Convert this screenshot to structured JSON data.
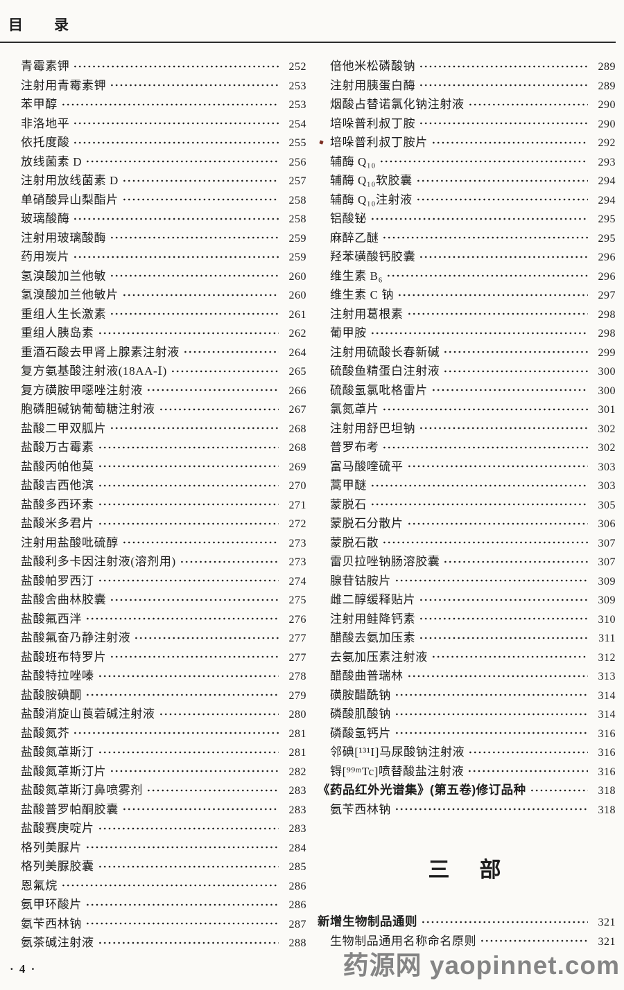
{
  "header": {
    "title": "目　　录"
  },
  "left_column": {
    "entries": [
      {
        "title": "青霉素钾",
        "page": "252"
      },
      {
        "title": "注射用青霉素钾",
        "page": "253"
      },
      {
        "title": "苯甲醇",
        "page": "253"
      },
      {
        "title": "非洛地平",
        "page": "254"
      },
      {
        "title": "依托度酸",
        "page": "255"
      },
      {
        "title": "放线菌素 D",
        "page": "256"
      },
      {
        "title": "注射用放线菌素 D",
        "page": "257"
      },
      {
        "title": "单硝酸异山梨酯片",
        "page": "258"
      },
      {
        "title": "玻璃酸酶",
        "page": "258"
      },
      {
        "title": "注射用玻璃酸酶",
        "page": "259"
      },
      {
        "title": "药用炭片",
        "page": "259"
      },
      {
        "title": "氢溴酸加兰他敏",
        "page": "260"
      },
      {
        "title": "氢溴酸加兰他敏片",
        "page": "260"
      },
      {
        "title": "重组人生长激素",
        "page": "261"
      },
      {
        "title": "重组人胰岛素",
        "page": "262"
      },
      {
        "title": "重酒石酸去甲肾上腺素注射液",
        "page": "264"
      },
      {
        "title": "复方氨基酸注射液(18AA-Ⅰ)",
        "page": "265"
      },
      {
        "title": "复方磺胺甲噁唑注射液",
        "page": "266"
      },
      {
        "title": "胞磷胆碱钠葡萄糖注射液",
        "page": "267"
      },
      {
        "title": "盐酸二甲双胍片",
        "page": "268"
      },
      {
        "title": "盐酸万古霉素",
        "page": "268"
      },
      {
        "title": "盐酸丙帕他莫",
        "page": "269"
      },
      {
        "title": "盐酸吉西他滨",
        "page": "270"
      },
      {
        "title": "盐酸多西环素",
        "page": "271"
      },
      {
        "title": "盐酸米多君片",
        "page": "272"
      },
      {
        "title": "注射用盐酸吡硫醇",
        "page": "273"
      },
      {
        "title": "盐酸利多卡因注射液(溶剂用)",
        "page": "273"
      },
      {
        "title": "盐酸帕罗西汀",
        "page": "274"
      },
      {
        "title": "盐酸舍曲林胶囊",
        "page": "275"
      },
      {
        "title": "盐酸氟西泮",
        "page": "276"
      },
      {
        "title": "盐酸氟奋乃静注射液",
        "page": "277"
      },
      {
        "title": "盐酸班布特罗片",
        "page": "277"
      },
      {
        "title": "盐酸特拉唑嗪",
        "page": "278"
      },
      {
        "title": "盐酸胺碘酮",
        "page": "279"
      },
      {
        "title": "盐酸消旋山莨菪碱注射液",
        "page": "280"
      },
      {
        "title": "盐酸氮芥",
        "page": "281"
      },
      {
        "title": "盐酸氮䓬斯汀",
        "page": "281"
      },
      {
        "title": "盐酸氮䓬斯汀片",
        "page": "282"
      },
      {
        "title": "盐酸氮䓬斯汀鼻喷雾剂",
        "page": "283"
      },
      {
        "title": "盐酸普罗帕酮胶囊",
        "page": "283"
      },
      {
        "title": "盐酸赛庚啶片",
        "page": "283"
      },
      {
        "title": "格列美脲片",
        "page": "284"
      },
      {
        "title": "格列美脲胶囊",
        "page": "285"
      },
      {
        "title": "恩氟烷",
        "page": "286"
      },
      {
        "title": "氨甲环酸片",
        "page": "286"
      },
      {
        "title": "氨苄西林钠",
        "page": "287"
      },
      {
        "title": "氨茶碱注射液",
        "page": "288"
      }
    ]
  },
  "right_column": {
    "entries": [
      {
        "title": "倍他米松磷酸钠",
        "page": "289"
      },
      {
        "title": "注射用胰蛋白酶",
        "page": "289"
      },
      {
        "title": "烟酸占替诺氯化钠注射液",
        "page": "290"
      },
      {
        "title": "培哚普利叔丁胺",
        "page": "290"
      },
      {
        "title": "培哚普利叔丁胺片",
        "page": "292",
        "marker": true
      },
      {
        "title": "辅酶 Q₁₀",
        "page": "293"
      },
      {
        "title": "辅酶 Q₁₀软胶囊",
        "page": "294"
      },
      {
        "title": "辅酶 Q₁₀注射液",
        "page": "294"
      },
      {
        "title": "铝酸铋",
        "page": "295"
      },
      {
        "title": "麻醉乙醚",
        "page": "295"
      },
      {
        "title": "羟苯磺酸钙胶囊",
        "page": "296"
      },
      {
        "title": "维生素 B₆",
        "page": "296"
      },
      {
        "title": "维生素 C 钠",
        "page": "297"
      },
      {
        "title": "注射用葛根素",
        "page": "298"
      },
      {
        "title": "葡甲胺",
        "page": "298"
      },
      {
        "title": "注射用硫酸长春新碱",
        "page": "299"
      },
      {
        "title": "硫酸鱼精蛋白注射液",
        "page": "300"
      },
      {
        "title": "硫酸氢氯吡格雷片",
        "page": "300"
      },
      {
        "title": "氯氮䓬片",
        "page": "301"
      },
      {
        "title": "注射用舒巴坦钠",
        "page": "302"
      },
      {
        "title": "普罗布考",
        "page": "302"
      },
      {
        "title": "富马酸喹硫平",
        "page": "303"
      },
      {
        "title": "蒿甲醚",
        "page": "303"
      },
      {
        "title": "蒙脱石",
        "page": "305"
      },
      {
        "title": "蒙脱石分散片",
        "page": "306"
      },
      {
        "title": "蒙脱石散",
        "page": "307"
      },
      {
        "title": "雷贝拉唑钠肠溶胶囊",
        "page": "307"
      },
      {
        "title": "腺苷钴胺片",
        "page": "309"
      },
      {
        "title": "雌二醇缓释贴片",
        "page": "309"
      },
      {
        "title": "注射用鲑降钙素",
        "page": "310"
      },
      {
        "title": "醋酸去氨加压素",
        "page": "311"
      },
      {
        "title": "去氨加压素注射液",
        "page": "312"
      },
      {
        "title": "醋酸曲普瑞林",
        "page": "313"
      },
      {
        "title": "磺胺醋酰钠",
        "page": "314"
      },
      {
        "title": "磷酸肌酸钠",
        "page": "314"
      },
      {
        "title": "磷酸氢钙片",
        "page": "316"
      },
      {
        "title": "邻碘[¹³¹I]马尿酸钠注射液",
        "page": "316"
      },
      {
        "title": "锝[⁹⁹ᵐTc]喷替酸盐注射液",
        "page": "316"
      },
      {
        "title": "《药品红外光谱集》(第五卷)修订品种",
        "page": "318",
        "variant": "section-row"
      },
      {
        "title": "氨苄西林钠",
        "page": "318"
      }
    ]
  },
  "part_heading": {
    "text": "三　部"
  },
  "biologics": {
    "entries": [
      {
        "title": "新增生物制品通则",
        "page": "321",
        "variant": "section-row"
      },
      {
        "title": "生物制品通用名称命名原则",
        "page": "321"
      }
    ]
  },
  "footer": {
    "page_label": "· 4 ·"
  },
  "watermark": {
    "text": "药源网 yaopinnet.com",
    "color": "#858585"
  }
}
